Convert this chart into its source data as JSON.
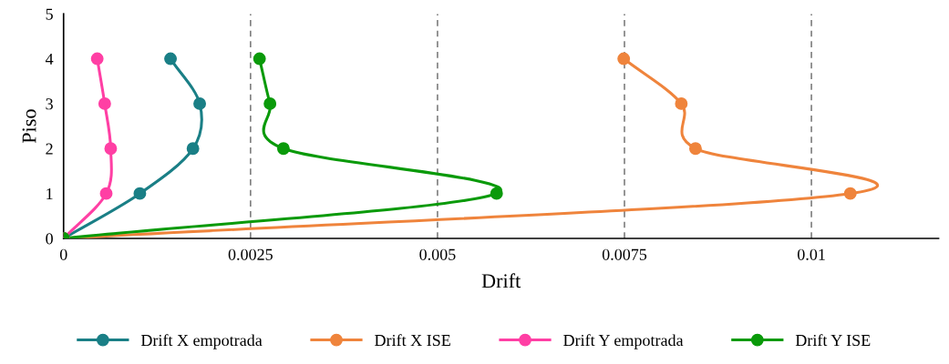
{
  "chart_data": {
    "type": "line",
    "xlabel": "Drift",
    "ylabel": "Piso",
    "xlim": [
      0,
      0.0117
    ],
    "xticks": [
      0,
      0.0025,
      0.005,
      0.0075,
      0.01
    ],
    "ylim": [
      0,
      5
    ],
    "yticks": [
      0,
      1,
      2,
      3,
      4,
      5
    ],
    "grid": "x",
    "legend": "bottom",
    "marker": "circle",
    "line_style": "solid",
    "series": [
      {
        "name": "Drift X empotrada",
        "color": "#1a7f86",
        "x": [
          0,
          0.00102,
          0.00173,
          0.00182,
          0.00143
        ],
        "values": [
          0,
          1,
          2,
          3,
          4
        ]
      },
      {
        "name": "Drift X ISE",
        "color": "#ef843c",
        "x": [
          0,
          0.01052,
          0.00845,
          0.00826,
          0.00749
        ],
        "values": [
          0,
          1,
          2,
          3,
          4
        ]
      },
      {
        "name": "Drift Y empotrada",
        "color": "#ff3fa4",
        "x": [
          0,
          0.00057,
          0.00063,
          0.00055,
          0.00045
        ],
        "values": [
          0,
          1,
          2,
          3,
          4
        ]
      },
      {
        "name": "Drift Y ISE",
        "color": "#0a9a0a",
        "x": [
          0,
          0.00579,
          0.00294,
          0.00276,
          0.00262
        ],
        "values": [
          0,
          1,
          2,
          3,
          4
        ]
      }
    ]
  }
}
